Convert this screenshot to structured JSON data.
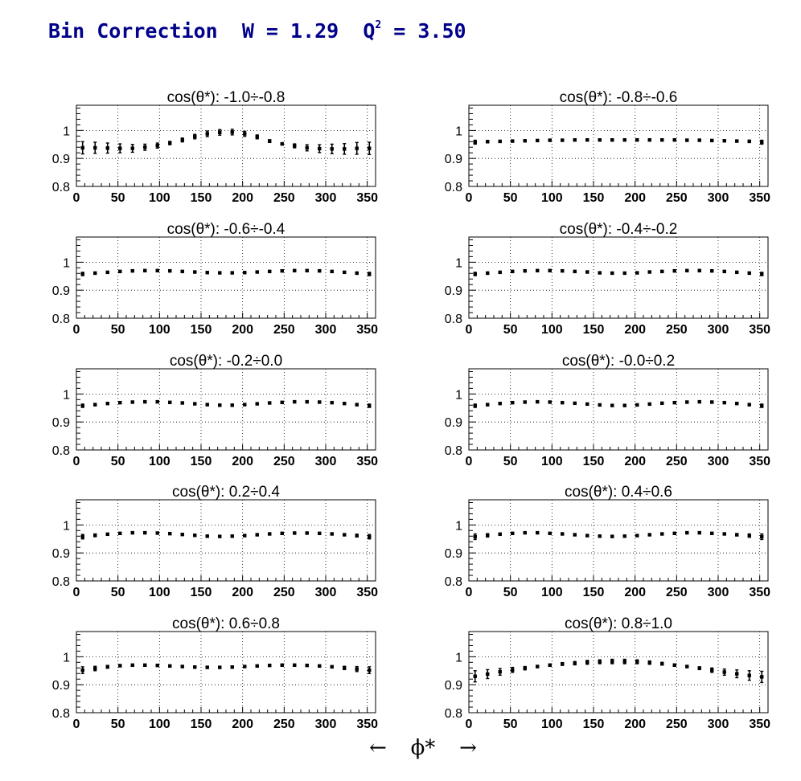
{
  "header": {
    "title_prefix": "Bin Correction  W = 1.29  Q",
    "title_sup": "2",
    "title_suffix": " = 3.50",
    "color": "#00008b"
  },
  "xaxis": {
    "left_arrow": "←",
    "symbol": "ϕ*",
    "right_arrow": "→"
  },
  "chart_data": {
    "type": "scatter",
    "grid": true,
    "x": [
      7.5,
      22.5,
      37.5,
      52.5,
      67.5,
      82.5,
      97.5,
      112.5,
      127.5,
      142.5,
      157.5,
      172.5,
      187.5,
      202.5,
      217.5,
      232.5,
      247.5,
      262.5,
      277.5,
      292.5,
      307.5,
      322.5,
      337.5,
      352.5
    ],
    "xlim": [
      0,
      360
    ],
    "ylim": [
      0.8,
      1.09
    ],
    "xticks": [
      "0",
      "50",
      "100",
      "150",
      "200",
      "250",
      "300",
      "350"
    ],
    "yticks": [
      "0.8",
      "0.9",
      "1"
    ],
    "panels": [
      {
        "title": "cos(θ*): -1.0÷-0.8",
        "values": [
          0.938,
          0.938,
          0.937,
          0.936,
          0.936,
          0.94,
          0.946,
          0.955,
          0.966,
          0.978,
          0.988,
          0.993,
          0.994,
          0.988,
          0.977,
          0.962,
          0.952,
          0.945,
          0.938,
          0.935,
          0.934,
          0.934,
          0.936,
          0.936
        ],
        "errors": [
          0.022,
          0.02,
          0.018,
          0.016,
          0.014,
          0.011,
          0.009,
          0.006,
          0.007,
          0.008,
          0.01,
          0.01,
          0.01,
          0.009,
          0.007,
          0.005,
          0.004,
          0.007,
          0.011,
          0.014,
          0.017,
          0.019,
          0.021,
          0.022
        ]
      },
      {
        "title": "cos(θ*): -0.8÷-0.6",
        "values": [
          0.958,
          0.96,
          0.961,
          0.962,
          0.963,
          0.964,
          0.965,
          0.965,
          0.966,
          0.966,
          0.966,
          0.966,
          0.966,
          0.966,
          0.966,
          0.966,
          0.966,
          0.965,
          0.965,
          0.964,
          0.963,
          0.962,
          0.961,
          0.958
        ],
        "errors": [
          0.007,
          0.004,
          0.003,
          0.003,
          0.003,
          0.003,
          0.003,
          0.003,
          0.003,
          0.003,
          0.003,
          0.003,
          0.003,
          0.003,
          0.003,
          0.003,
          0.003,
          0.003,
          0.003,
          0.003,
          0.003,
          0.003,
          0.004,
          0.007
        ]
      },
      {
        "title": "cos(θ*): -0.6÷-0.4",
        "values": [
          0.958,
          0.961,
          0.964,
          0.967,
          0.969,
          0.97,
          0.97,
          0.969,
          0.967,
          0.965,
          0.963,
          0.962,
          0.962,
          0.963,
          0.965,
          0.967,
          0.969,
          0.97,
          0.97,
          0.969,
          0.967,
          0.964,
          0.961,
          0.958
        ],
        "errors": [
          0.006,
          0.004,
          0.003,
          0.003,
          0.003,
          0.003,
          0.003,
          0.003,
          0.003,
          0.003,
          0.003,
          0.003,
          0.003,
          0.003,
          0.003,
          0.003,
          0.003,
          0.003,
          0.003,
          0.003,
          0.003,
          0.003,
          0.004,
          0.006
        ]
      },
      {
        "title": "cos(θ*): -0.4÷-0.2",
        "values": [
          0.958,
          0.961,
          0.964,
          0.967,
          0.969,
          0.97,
          0.97,
          0.969,
          0.967,
          0.965,
          0.962,
          0.961,
          0.961,
          0.962,
          0.965,
          0.967,
          0.969,
          0.97,
          0.97,
          0.969,
          0.967,
          0.964,
          0.961,
          0.958
        ],
        "errors": [
          0.006,
          0.004,
          0.003,
          0.003,
          0.003,
          0.003,
          0.003,
          0.003,
          0.003,
          0.003,
          0.003,
          0.003,
          0.003,
          0.003,
          0.003,
          0.003,
          0.003,
          0.003,
          0.003,
          0.003,
          0.003,
          0.003,
          0.004,
          0.006
        ]
      },
      {
        "title": "cos(θ*): -0.2÷0.0",
        "values": [
          0.958,
          0.962,
          0.966,
          0.969,
          0.971,
          0.972,
          0.972,
          0.97,
          0.968,
          0.965,
          0.962,
          0.96,
          0.96,
          0.962,
          0.965,
          0.968,
          0.97,
          0.972,
          0.972,
          0.971,
          0.969,
          0.966,
          0.962,
          0.958
        ],
        "errors": [
          0.006,
          0.004,
          0.003,
          0.003,
          0.003,
          0.003,
          0.003,
          0.003,
          0.003,
          0.003,
          0.003,
          0.003,
          0.003,
          0.003,
          0.003,
          0.003,
          0.003,
          0.003,
          0.003,
          0.003,
          0.003,
          0.003,
          0.004,
          0.006
        ]
      },
      {
        "title": "cos(θ*): -0.0÷0.2",
        "values": [
          0.958,
          0.962,
          0.966,
          0.969,
          0.971,
          0.972,
          0.971,
          0.969,
          0.967,
          0.964,
          0.961,
          0.959,
          0.959,
          0.961,
          0.964,
          0.967,
          0.969,
          0.971,
          0.972,
          0.971,
          0.969,
          0.966,
          0.962,
          0.958
        ],
        "errors": [
          0.006,
          0.004,
          0.003,
          0.003,
          0.003,
          0.003,
          0.003,
          0.003,
          0.003,
          0.003,
          0.003,
          0.003,
          0.003,
          0.003,
          0.003,
          0.003,
          0.003,
          0.003,
          0.003,
          0.003,
          0.003,
          0.003,
          0.004,
          0.006
        ]
      },
      {
        "title": "cos(θ*): 0.2÷0.4",
        "values": [
          0.958,
          0.963,
          0.967,
          0.97,
          0.972,
          0.972,
          0.971,
          0.969,
          0.966,
          0.963,
          0.96,
          0.959,
          0.96,
          0.962,
          0.965,
          0.968,
          0.97,
          0.971,
          0.971,
          0.97,
          0.968,
          0.965,
          0.962,
          0.958
        ],
        "errors": [
          0.008,
          0.005,
          0.003,
          0.003,
          0.003,
          0.003,
          0.003,
          0.003,
          0.003,
          0.003,
          0.003,
          0.003,
          0.003,
          0.003,
          0.003,
          0.003,
          0.003,
          0.003,
          0.003,
          0.003,
          0.003,
          0.003,
          0.005,
          0.008
        ]
      },
      {
        "title": "cos(θ*): 0.4÷0.6",
        "values": [
          0.958,
          0.963,
          0.967,
          0.97,
          0.972,
          0.972,
          0.97,
          0.968,
          0.965,
          0.962,
          0.96,
          0.959,
          0.96,
          0.962,
          0.965,
          0.968,
          0.97,
          0.972,
          0.972,
          0.97,
          0.968,
          0.965,
          0.962,
          0.958
        ],
        "errors": [
          0.01,
          0.006,
          0.004,
          0.003,
          0.003,
          0.003,
          0.003,
          0.003,
          0.003,
          0.003,
          0.003,
          0.003,
          0.003,
          0.003,
          0.003,
          0.003,
          0.003,
          0.003,
          0.003,
          0.003,
          0.003,
          0.004,
          0.006,
          0.01
        ]
      },
      {
        "title": "cos(θ*): 0.6÷0.8",
        "values": [
          0.952,
          0.958,
          0.964,
          0.968,
          0.97,
          0.97,
          0.969,
          0.967,
          0.965,
          0.963,
          0.962,
          0.962,
          0.963,
          0.965,
          0.967,
          0.969,
          0.97,
          0.97,
          0.969,
          0.967,
          0.964,
          0.96,
          0.956,
          0.952
        ],
        "errors": [
          0.012,
          0.008,
          0.005,
          0.004,
          0.003,
          0.003,
          0.003,
          0.003,
          0.003,
          0.003,
          0.003,
          0.003,
          0.003,
          0.003,
          0.003,
          0.003,
          0.003,
          0.003,
          0.003,
          0.003,
          0.004,
          0.006,
          0.009,
          0.012
        ]
      },
      {
        "title": "cos(θ*): 0.8÷1.0",
        "values": [
          0.93,
          0.938,
          0.946,
          0.953,
          0.959,
          0.965,
          0.97,
          0.974,
          0.977,
          0.98,
          0.982,
          0.983,
          0.983,
          0.982,
          0.979,
          0.975,
          0.97,
          0.965,
          0.959,
          0.952,
          0.945,
          0.939,
          0.933,
          0.928
        ],
        "errors": [
          0.02,
          0.016,
          0.012,
          0.009,
          0.006,
          0.004,
          0.004,
          0.005,
          0.006,
          0.007,
          0.007,
          0.008,
          0.008,
          0.007,
          0.006,
          0.005,
          0.004,
          0.004,
          0.005,
          0.008,
          0.011,
          0.014,
          0.017,
          0.02
        ]
      }
    ]
  }
}
